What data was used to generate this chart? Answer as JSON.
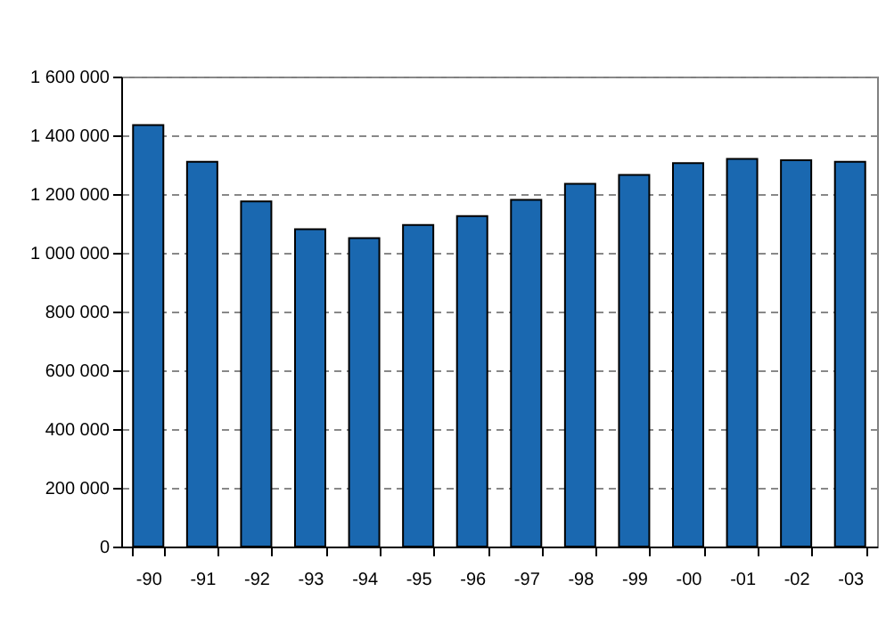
{
  "chart_data": {
    "type": "bar",
    "categories": [
      "-90",
      "-91",
      "-92",
      "-93",
      "-94",
      "-95",
      "-96",
      "-97",
      "-98",
      "-99",
      "-00",
      "-01",
      "-02",
      "-03"
    ],
    "values": [
      1435000,
      1310000,
      1175000,
      1080000,
      1050000,
      1095000,
      1125000,
      1180000,
      1235000,
      1265000,
      1305000,
      1320000,
      1315000,
      1310000
    ],
    "color": "#1a68b0",
    "ylim": [
      0,
      1600000
    ],
    "yticks": [
      0,
      200000,
      400000,
      600000,
      800000,
      1000000,
      1200000,
      1400000,
      1600000
    ],
    "grid": "y"
  }
}
